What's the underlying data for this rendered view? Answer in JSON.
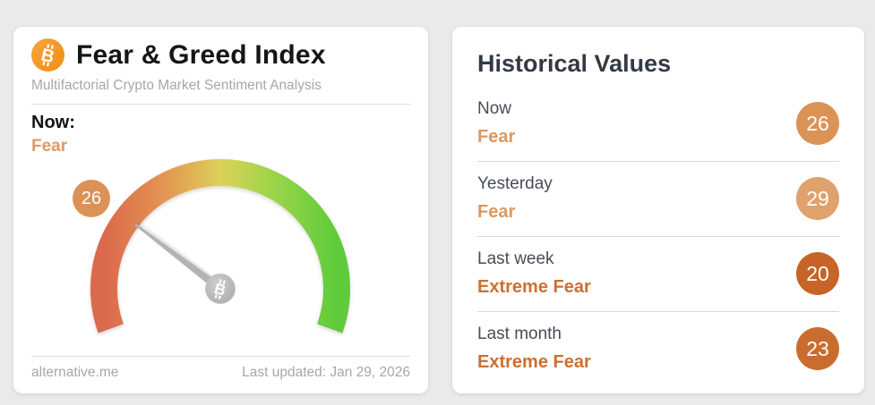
{
  "page": {
    "background": "#ebeaea"
  },
  "brand": {
    "bitcoin_glyph": "B",
    "bitcoin_orange": "#f7941d"
  },
  "index_card": {
    "title": "Fear & Greed Index",
    "subtitle": "Multifactorial Crypto Market Sentiment Analysis",
    "now_label": "Now:",
    "status": "Fear",
    "status_color": "#e29a62",
    "gauge": {
      "value": 26,
      "min": 0,
      "max": 100,
      "badge_color": "#db9257",
      "arc_colors": [
        "#db694d",
        "#e39552",
        "#ddd058",
        "#9ed54a",
        "#5ecb3a"
      ],
      "needle_color": "#b3b3b3",
      "hub_color": "#b9b9b9"
    },
    "footer": {
      "source": "alternative.me",
      "last_updated": "Last updated: Jan 29, 2026"
    }
  },
  "history_card": {
    "title": "Historical Values",
    "rows": [
      {
        "label": "Now",
        "status": "Fear",
        "value": 26,
        "status_color": "#dd9760",
        "badge_color": "#db9255"
      },
      {
        "label": "Yesterday",
        "status": "Fear",
        "value": 29,
        "status_color": "#dd9760",
        "badge_color": "#e0a16c"
      },
      {
        "label": "Last week",
        "status": "Extreme Fear",
        "value": 20,
        "status_color": "#cd7031",
        "badge_color": "#c66527"
      },
      {
        "label": "Last month",
        "status": "Extreme Fear",
        "value": 23,
        "status_color": "#cd7031",
        "badge_color": "#c96d2e"
      }
    ]
  }
}
